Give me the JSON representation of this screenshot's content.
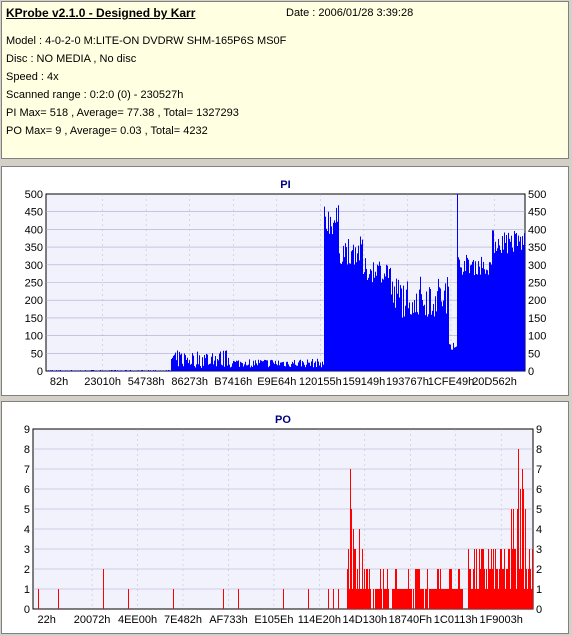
{
  "info": {
    "title": "KProbe v2.1.0 - Designed by Karr",
    "date": "Date : 2006/01/28 3:39:28",
    "model": "Model : 4-0-2-0 M:LITE-ON DVDRW SHM-165P6S MS0F",
    "disc": "Disc : NO MEDIA , No disc",
    "speed": "Speed : 4x",
    "range": "Scanned range : 0:2:0 (0) - 230527h",
    "pi": "PI Max= 518 , Average= 77.38 , Total= 1327293",
    "po": "PO Max= 9 , Average= 0.03 , Total= 4232"
  },
  "colors": {
    "pi": "#0000ff",
    "po": "#ff0000",
    "plot_bg": "#f2f2fc",
    "grid": "#aaaacc"
  },
  "chart_data": [
    {
      "type": "bar",
      "title": "PI",
      "ylim": [
        0,
        500
      ],
      "yticks": [
        "0",
        "50",
        "100",
        "150",
        "200",
        "250",
        "300",
        "350",
        "400",
        "450",
        "500"
      ],
      "xticks": [
        "82h",
        "23010h",
        "54738h",
        "86273h",
        "B7416h",
        "E9E64h",
        "120155h",
        "159149h",
        "193767h",
        "1CFE49h",
        "20D562h"
      ],
      "spike_value": 518,
      "segments": [
        {
          "from": 0.0,
          "to": 0.26,
          "values": [
            0,
            3
          ]
        },
        {
          "from": 0.26,
          "to": 0.38,
          "values": [
            8,
            60
          ]
        },
        {
          "from": 0.38,
          "to": 0.58,
          "values": [
            10,
            35
          ]
        },
        {
          "from": 0.58,
          "to": 0.61,
          "values": [
            380,
            470
          ]
        },
        {
          "from": 0.61,
          "to": 0.66,
          "values": [
            300,
            380
          ]
        },
        {
          "from": 0.66,
          "to": 0.72,
          "values": [
            250,
            320
          ]
        },
        {
          "from": 0.72,
          "to": 0.84,
          "values": [
            150,
            270
          ]
        },
        {
          "from": 0.84,
          "to": 0.86,
          "values": [
            60,
            100
          ]
        },
        {
          "from": 0.86,
          "to": 0.93,
          "values": [
            270,
            330
          ]
        },
        {
          "from": 0.93,
          "to": 1.0,
          "values": [
            330,
            400
          ]
        }
      ]
    },
    {
      "type": "bar",
      "title": "PO",
      "ylim": [
        0,
        9
      ],
      "yticks": [
        "0",
        "1",
        "2",
        "3",
        "4",
        "5",
        "6",
        "7",
        "8",
        "9"
      ],
      "xticks": [
        "22h",
        "20072h",
        "4EE00h",
        "7E482h",
        "AF733h",
        "E105Eh",
        "114E20h",
        "14D130h",
        "18740Fh",
        "1C0113h",
        "1F9003h"
      ],
      "sparse_values": [
        1,
        1,
        2,
        1,
        1,
        1,
        1,
        1,
        1,
        1,
        1,
        1
      ],
      "dense_values": [
        0,
        1,
        2,
        3,
        4,
        5,
        6,
        7,
        8
      ]
    }
  ]
}
